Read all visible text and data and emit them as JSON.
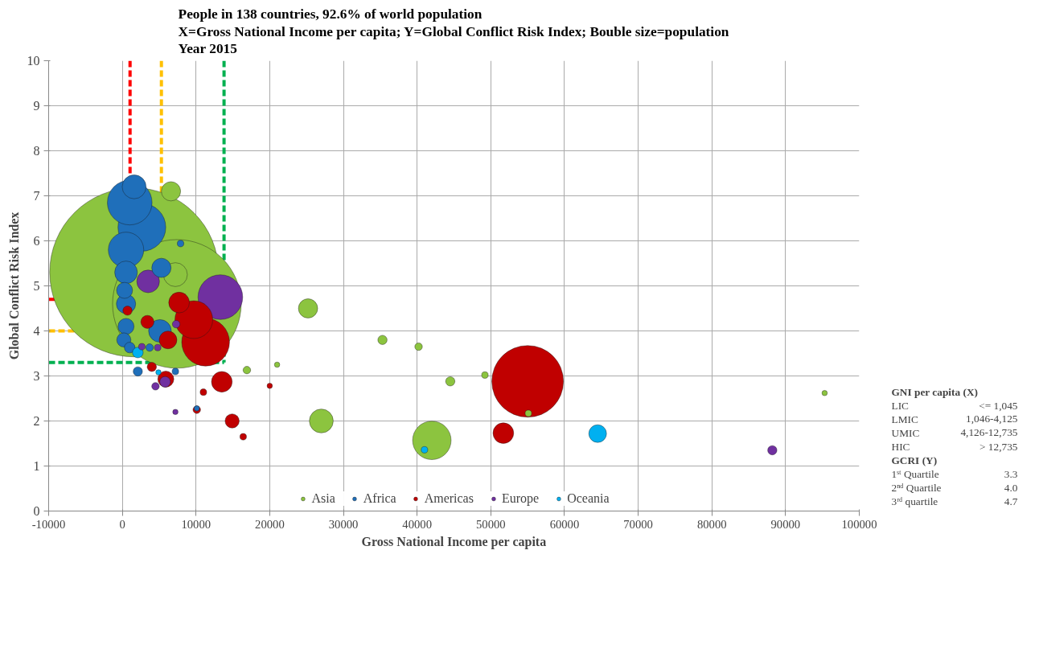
{
  "chart_data": {
    "type": "bubble",
    "title": "People in 138 countries, 92.6% of world population\nX=Gross National Income per capita; Y=Global Conflict Risk Index; Bouble size=population\nYear 2015",
    "xlabel": "Gross National Income per capita",
    "ylabel": "Global Conflict Risk Index",
    "xlim": [
      -10000,
      100000
    ],
    "xticks": [
      -10000,
      0,
      10000,
      20000,
      30000,
      40000,
      50000,
      60000,
      70000,
      80000,
      90000,
      100000
    ],
    "ylim": [
      0,
      10
    ],
    "yticks": [
      0,
      1,
      2,
      3,
      4,
      5,
      6,
      7,
      8,
      9,
      10
    ],
    "grid": true,
    "legend": "bottom",
    "series": [
      {
        "name": "Asia",
        "color": "#8cc43f",
        "x": [
          1600,
          7400,
          6600,
          7200,
          25200,
          27000,
          42000,
          35300,
          40200,
          44500,
          49200,
          55100,
          16900,
          21000,
          95300
        ],
        "values": [
          5.3,
          4.6,
          7.1,
          5.25,
          4.5,
          2.0,
          1.57,
          3.8,
          3.65,
          2.88,
          3.02,
          2.17,
          3.13,
          3.25,
          2.62
        ],
        "sizes": [
          1,
          0.58,
          0.013,
          0.02,
          0.013,
          0.02,
          0.052,
          0.003,
          0.002,
          0.003,
          0.0015,
          0.0015,
          0.002,
          0.001,
          0.001
        ]
      },
      {
        "name": "Africa",
        "color": "#1f6fba",
        "x": [
          1600,
          1000,
          2650,
          500,
          500,
          300,
          500,
          500,
          200,
          5300,
          7900,
          5100,
          2100,
          7200,
          1000,
          10100,
          3700
        ],
        "values": [
          7.2,
          6.85,
          6.3,
          5.8,
          5.3,
          4.9,
          4.6,
          4.1,
          3.8,
          5.4,
          5.94,
          4.0,
          3.1,
          3.1,
          3.63,
          2.28,
          3.63
        ],
        "sizes": [
          0.02,
          0.07,
          0.08,
          0.044,
          0.018,
          0.009,
          0.013,
          0.009,
          0.007,
          0.013,
          0.0015,
          0.018,
          0.003,
          0.0015,
          0.004,
          0.001,
          0.002
        ]
      },
      {
        "name": "Americas",
        "color": "#c00000",
        "x": [
          55000,
          11300,
          9700,
          7700,
          13500,
          14900,
          51700,
          6200,
          3400,
          700,
          5900,
          4000,
          11000,
          16400,
          20000,
          10100
        ],
        "values": [
          2.88,
          3.75,
          4.25,
          4.63,
          2.87,
          2.0,
          1.73,
          3.8,
          4.2,
          4.45,
          2.93,
          3.2,
          2.64,
          1.65,
          2.78,
          2.25
        ],
        "sizes": [
          0.18,
          0.08,
          0.05,
          0.015,
          0.015,
          0.007,
          0.015,
          0.011,
          0.006,
          0.003,
          0.009,
          0.003,
          0.0015,
          0.0015,
          0.001,
          0.002
        ]
      },
      {
        "name": "Europe",
        "color": "#7030a0",
        "x": [
          13300,
          3500,
          5800,
          4500,
          7300,
          4800,
          7200,
          88200,
          2650
        ],
        "values": [
          4.75,
          5.1,
          2.87,
          2.77,
          4.15,
          3.63,
          2.2,
          1.35,
          3.65
        ],
        "sizes": [
          0.07,
          0.018,
          0.004,
          0.002,
          0.002,
          0.0015,
          0.001,
          0.003,
          0.0015
        ]
      },
      {
        "name": "Oceania",
        "color": "#00b0f0",
        "x": [
          64500,
          2100,
          41000,
          4900
        ],
        "values": [
          1.72,
          3.52,
          1.36,
          3.08
        ],
        "sizes": [
          0.011,
          0.004,
          0.0015,
          0.001
        ]
      }
    ],
    "ref_lines": [
      {
        "axis": "x",
        "value": 1045,
        "color": "#ff0000",
        "line_style": "dashed"
      },
      {
        "axis": "y",
        "value": 4.7,
        "color": "#ff0000",
        "line_style": "dashed"
      },
      {
        "axis": "x",
        "value": 5300,
        "color": "#ffc000",
        "line_style": "dashed"
      },
      {
        "axis": "y",
        "value": 4.0,
        "color": "#ffc000",
        "line_style": "dashed"
      },
      {
        "axis": "x",
        "value": 13800,
        "color": "#00b050",
        "line_style": "dashed"
      },
      {
        "axis": "y",
        "value": 3.3,
        "color": "#00b050",
        "line_style": "dashed"
      }
    ],
    "annotations": [
      "GNI per capita (X)",
      "LIC\t<= 1,045",
      "LMIC\t1,046-4,125",
      "UMIC\t4,126-12,735",
      "HIC\t> 12,735",
      "GCRI (Y)",
      "1ˢᵗ Quartile\t3.3",
      "2ⁿᵈ Quartile\t4.0",
      "3ʳᵈ quartile\t4.7"
    ]
  }
}
